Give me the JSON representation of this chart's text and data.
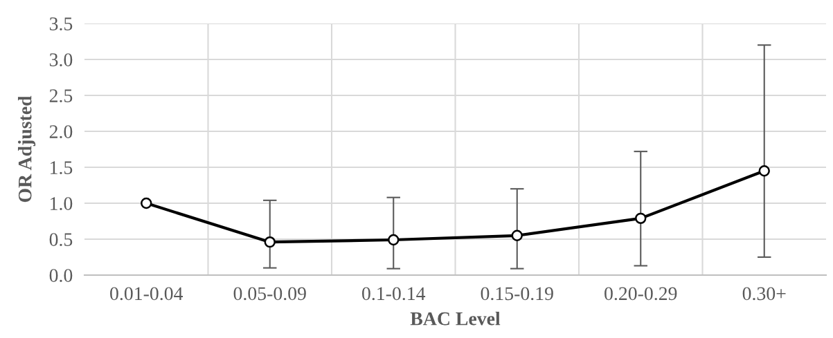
{
  "chart_data": {
    "type": "line",
    "xlabel": "BAC Level",
    "ylabel": "OR Adjusted",
    "categories": [
      "0.01-0.04",
      "0.05-0.09",
      "0.1-0.14",
      "0.15-0.19",
      "0.20-0.29",
      "0.30+"
    ],
    "values": [
      1.0,
      0.46,
      0.49,
      0.55,
      0.79,
      1.45
    ],
    "errors": [
      null,
      [
        0.1,
        1.04
      ],
      [
        0.09,
        1.08
      ],
      [
        0.09,
        1.2
      ],
      [
        0.13,
        1.72
      ],
      [
        0.25,
        3.2
      ]
    ],
    "color": "#000000",
    "marker": "circle",
    "line_style": "solid",
    "ylim": [
      0,
      3.5
    ],
    "yticks": [
      {
        "value": 0,
        "label": "0.0"
      },
      {
        "value": 0.5,
        "label": "0.5"
      },
      {
        "value": 1,
        "label": "1.0"
      },
      {
        "value": 1.5,
        "label": "1.5"
      },
      {
        "value": 2,
        "label": "2.0"
      },
      {
        "value": 2.5,
        "label": "2.5"
      },
      {
        "value": 3,
        "label": "3.0"
      },
      {
        "value": 3.5,
        "label": "3.5"
      }
    ],
    "grid": true,
    "legend": false
  }
}
